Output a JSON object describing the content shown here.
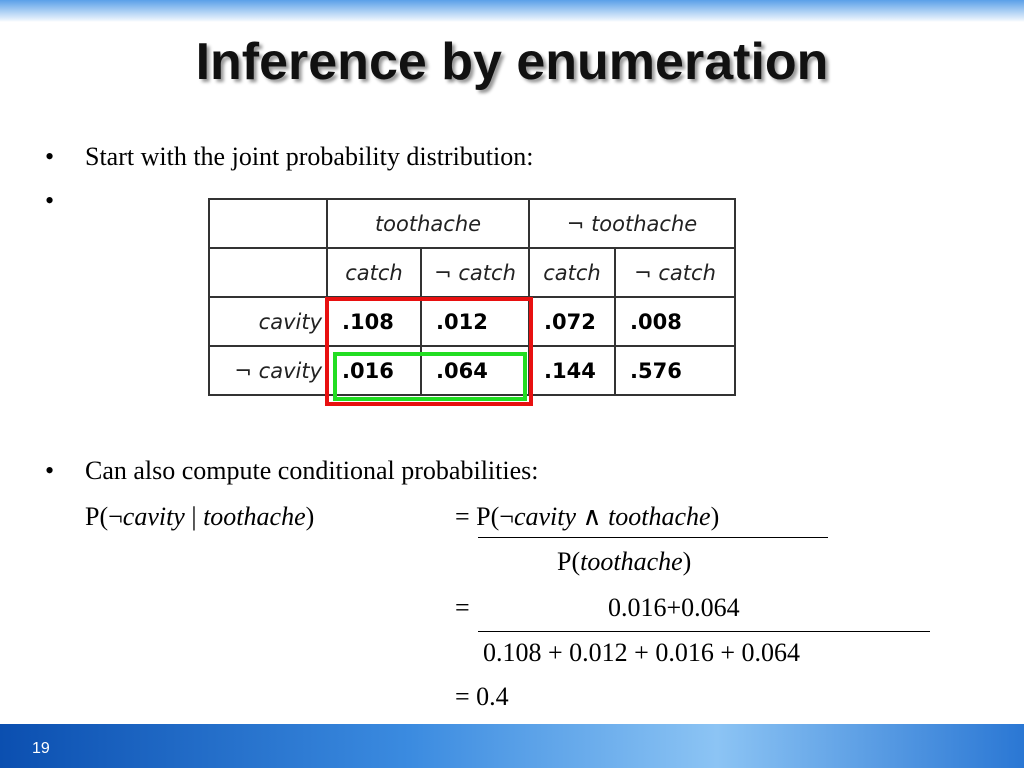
{
  "title": "Inference by enumeration",
  "bullets": [
    "Start with the joint probability distribution:"
  ],
  "table": {
    "header": [
      "toothache",
      "¬ toothache"
    ],
    "subheader": [
      "catch",
      "¬ catch",
      "catch",
      "¬ catch"
    ],
    "rows": [
      {
        "label": "cavity",
        "values": [
          ".108",
          ".012",
          ".072",
          ".008"
        ]
      },
      {
        "label": "¬ cavity",
        "values": [
          ".016",
          ".064",
          ".144",
          ".576"
        ]
      }
    ]
  },
  "conditional": {
    "intro": "Can also compute conditional probabilities:",
    "lhs": [
      "P(¬",
      "cavity",
      " | ",
      "toothache",
      ")"
    ],
    "step1_numerator": [
      "= P(¬",
      "cavity",
      " ∧ ",
      "toothache",
      ")"
    ],
    "step1_denominator": [
      "P(",
      "toothache",
      ")"
    ],
    "step2_equals": "=",
    "step2_numerator": "0.016+0.064",
    "step2_denominator": "0.108 + 0.012 + 0.016 + 0.064",
    "result": "= 0.4"
  },
  "page_number": "19"
}
